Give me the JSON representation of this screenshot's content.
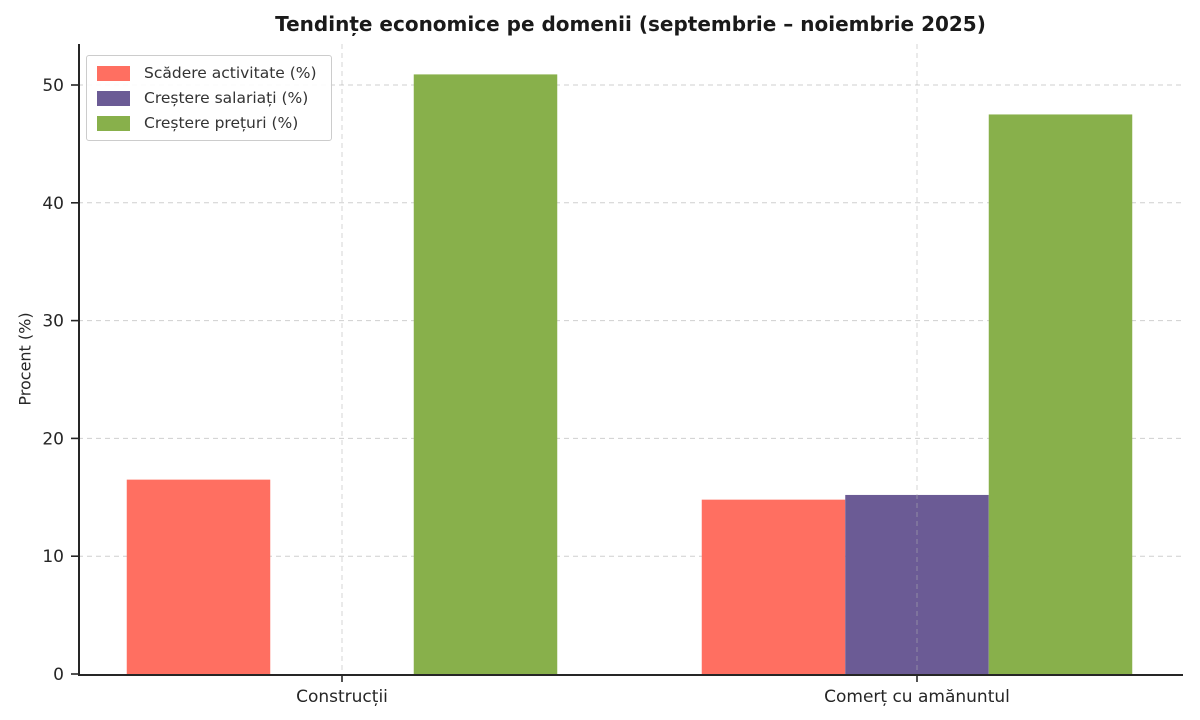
{
  "chart_data": {
    "type": "bar",
    "title": "Tendințe economice pe domenii (septembrie – noiembrie 2025)",
    "ylabel": "Procent (%)",
    "xlabel": "",
    "categories": [
      "Construcții",
      "Comerț cu amănuntul"
    ],
    "series": [
      {
        "name": "Scădere activitate (%)",
        "color": "#FF6F61",
        "values": [
          16.5,
          14.8
        ]
      },
      {
        "name": "Creștere salariați (%)",
        "color": "#6B5B95",
        "values": [
          0,
          15.2
        ]
      },
      {
        "name": "Creștere prețuri (%)",
        "color": "#88B04B",
        "values": [
          50.9,
          47.5
        ]
      }
    ],
    "yticks": [
      0,
      10,
      20,
      30,
      40,
      50
    ],
    "ylim": [
      0,
      53.5
    ],
    "grid": true,
    "grid_style": "dashed",
    "legend_position": "upper-left",
    "background_color": "#ffffff",
    "text_color": "#262626"
  }
}
